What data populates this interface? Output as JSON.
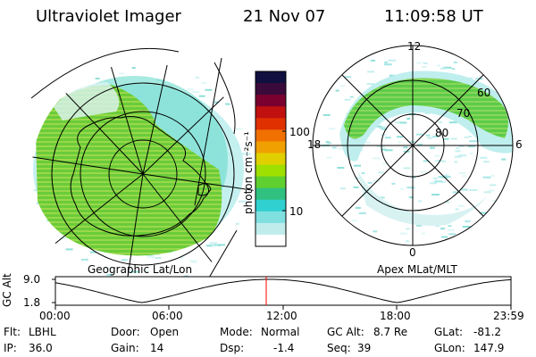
{
  "header": {
    "instrument": "Ultraviolet Imager",
    "date": "21 Nov 07",
    "time": "11:09:58 UT"
  },
  "colorbar": {
    "unit_label": "photon cm⁻²s⁻¹",
    "tick_labels": [
      "100",
      "10"
    ],
    "colors": [
      "#101040",
      "#3a0a3a",
      "#7a0030",
      "#c01010",
      "#e03000",
      "#f07000",
      "#f0a000",
      "#e0d000",
      "#a0e000",
      "#60d030",
      "#30c080",
      "#30d0d0",
      "#80e0e0",
      "#c0ecec",
      "#ffffff"
    ]
  },
  "left_panel": {
    "label": "Geographic Lat/Lon",
    "aurora_color": "#66cc33"
  },
  "right_panel": {
    "label": "Apex MLat/MLT",
    "mlt_labels": [
      "12",
      "18",
      "6",
      "0"
    ],
    "mlat_labels": [
      "60",
      "70",
      "80"
    ],
    "aurora_color": "#55cc44"
  },
  "altitude_plot": {
    "axis_label": "GC Alt",
    "y_ticks": [
      "9.0",
      "1.8"
    ],
    "x_ticks": [
      "00:00",
      "06:00",
      "12:00",
      "18:00",
      "23:59"
    ],
    "current_marker_color": "#ff0000"
  },
  "status": {
    "flt_label": "Flt:",
    "flt_value": "LBHL",
    "ip_label": "IP:",
    "ip_value": "36.0",
    "door_label": "Door:",
    "door_value": "Open",
    "gain_label": "Gain:",
    "gain_value": "14",
    "mode_label": "Mode:",
    "mode_value": "Normal",
    "dsp_label": "Dsp:",
    "dsp_value": "-1.4",
    "gcalt_label": "GC Alt:",
    "gcalt_value": "8.7 Re",
    "seq_label": "Seq:",
    "seq_value": "39",
    "glat_label": "GLat:",
    "glat_value": "-81.2",
    "glon_label": "GLon:",
    "glon_value": "147.9"
  }
}
